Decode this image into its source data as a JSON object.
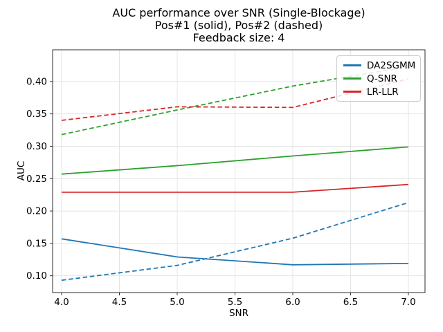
{
  "chart_data": {
    "type": "line",
    "title": "AUC performance over SNR (Single-Blockage)",
    "subtitle": [
      "Pos#1 (solid), Pos#2 (dashed)",
      "Feedback size: 4"
    ],
    "xlabel": "SNR",
    "ylabel": "AUC",
    "x": [
      4.0,
      5.0,
      6.0,
      7.0
    ],
    "series": [
      {
        "name": "DA2SGMM",
        "position": "Pos#1",
        "style": "solid",
        "color": "#1f77b4",
        "values": [
          0.157,
          0.129,
          0.117,
          0.119
        ]
      },
      {
        "name": "DA2SGMM",
        "position": "Pos#2",
        "style": "dashed",
        "color": "#1f77b4",
        "values": [
          0.093,
          0.116,
          0.158,
          0.213
        ]
      },
      {
        "name": "Q-SNR",
        "position": "Pos#1",
        "style": "solid",
        "color": "#2ca02c",
        "values": [
          0.257,
          0.27,
          0.285,
          0.299
        ]
      },
      {
        "name": "Q-SNR",
        "position": "Pos#2",
        "style": "dashed",
        "color": "#2ca02c",
        "values": [
          0.318,
          0.356,
          0.393,
          0.423
        ]
      },
      {
        "name": "LR-LLR",
        "position": "Pos#1",
        "style": "solid",
        "color": "#d62728",
        "values": [
          0.229,
          0.229,
          0.229,
          0.241
        ]
      },
      {
        "name": "LR-LLR",
        "position": "Pos#2",
        "style": "dashed",
        "color": "#d62728",
        "values": [
          0.34,
          0.361,
          0.36,
          0.404
        ]
      }
    ],
    "xlim": [
      3.922,
      7.144
    ],
    "ylim": [
      0.074,
      0.449
    ],
    "xticks": {
      "values": [
        4.0,
        4.5,
        5.0,
        5.5,
        6.0,
        6.5,
        7.0
      ],
      "labels": [
        "4.0",
        "4.5",
        "5.0",
        "5.5",
        "6.0",
        "6.5",
        "7.0"
      ]
    },
    "yticks": {
      "values": [
        0.1,
        0.15,
        0.2,
        0.25,
        0.3,
        0.35,
        0.4
      ],
      "labels": [
        "0.10",
        "0.15",
        "0.20",
        "0.25",
        "0.30",
        "0.35",
        "0.40"
      ]
    },
    "grid": true,
    "colors": {
      "grid": "#e4e4e4",
      "spine": "#2b2b2b",
      "tick": "#2b2b2b",
      "text": "#000000",
      "background": "#ffffff"
    },
    "legend": {
      "position": "upper right",
      "entries": [
        {
          "label": "DA2SGMM",
          "color": "#1f77b4"
        },
        {
          "label": "Q-SNR",
          "color": "#2ca02c"
        },
        {
          "label": "LR-LLR",
          "color": "#d62728"
        }
      ]
    }
  }
}
